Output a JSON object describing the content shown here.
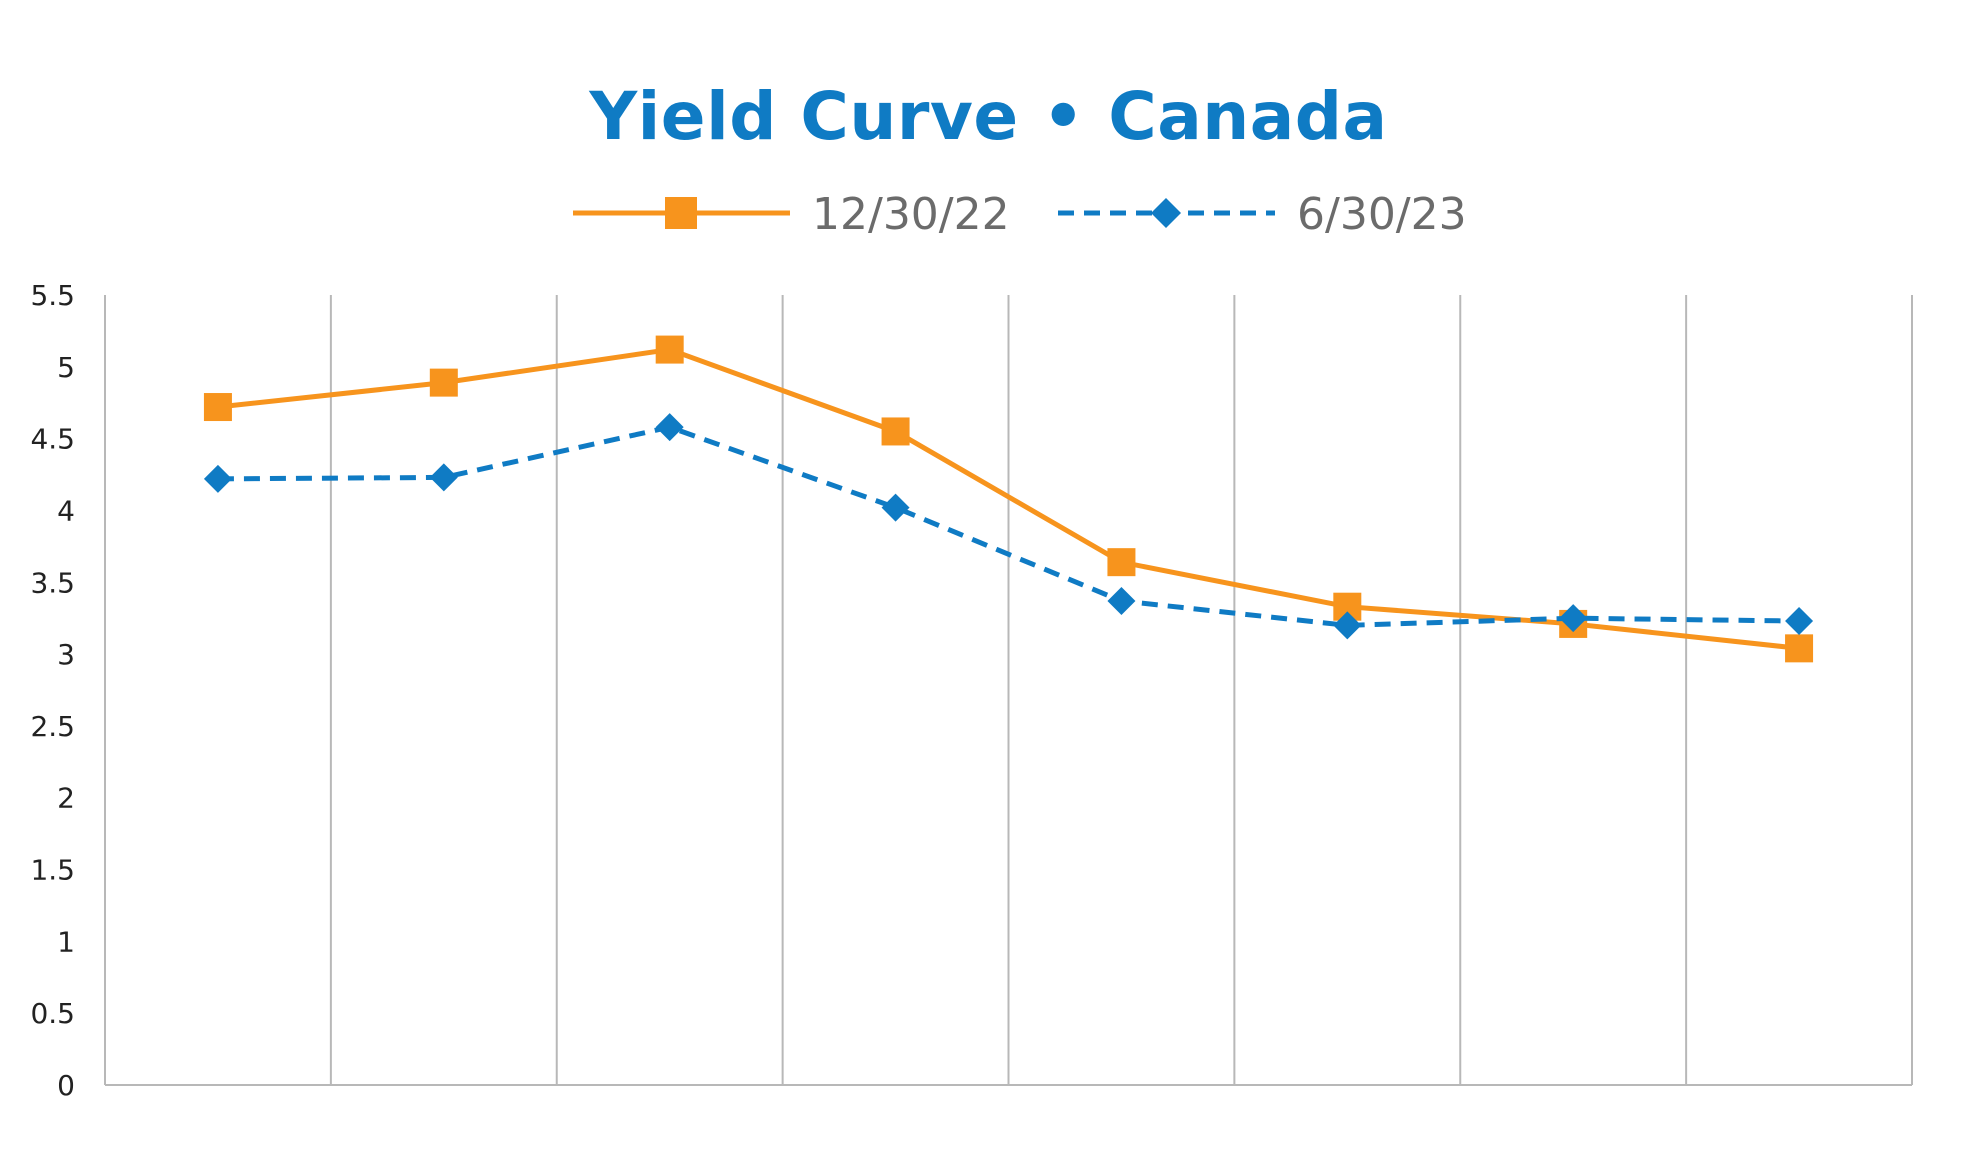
{
  "chart_data": {
    "type": "line",
    "title": "Yield Curve • Canada",
    "xlabel": "",
    "ylabel": "",
    "categories": [
      "",
      "",
      "",
      "",
      "",
      "",
      "",
      ""
    ],
    "ylim": [
      0,
      5.5
    ],
    "yticks": [
      "0",
      "0.5",
      "1",
      "1.5",
      "2",
      "2.5",
      "3",
      "3.5",
      "4",
      "4.5",
      "5",
      "5.5"
    ],
    "grid": "vertical",
    "legend_position": "top",
    "series": [
      {
        "name": "12/30/22",
        "color": "#f7941d",
        "marker": "square",
        "dash": "solid",
        "values": [
          4.72,
          4.89,
          5.12,
          4.55,
          3.64,
          3.33,
          3.21,
          3.04
        ]
      },
      {
        "name": "6/30/23",
        "color": "#0f7bc4",
        "marker": "diamond",
        "dash": "dashed",
        "values": [
          4.22,
          4.23,
          4.58,
          4.02,
          3.37,
          3.2,
          3.25,
          3.23
        ]
      }
    ]
  }
}
